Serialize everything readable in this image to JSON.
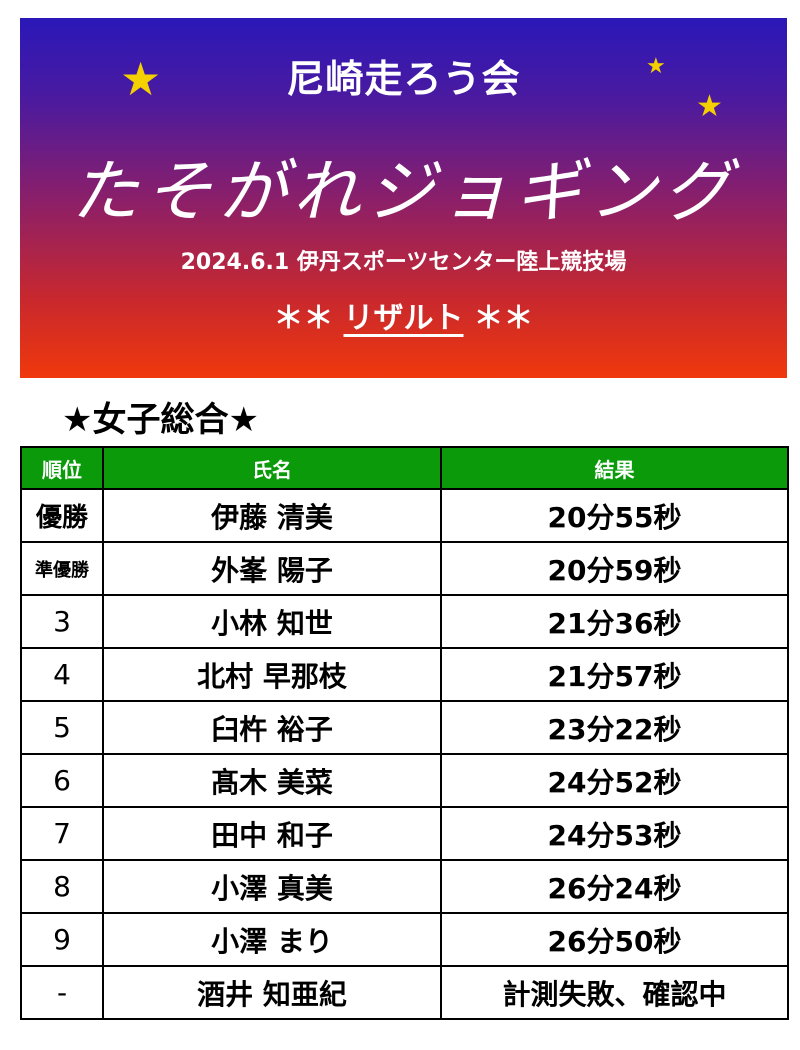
{
  "header": {
    "org": "尼崎走ろう会",
    "event": "たそがれジョギング",
    "subline": "2024.6.1 伊丹スポーツセンター陸上競技場",
    "result_left": "＊＊",
    "result_word": "リザルト",
    "result_right": "＊＊",
    "star_color": "#f5d000"
  },
  "section_title": "★女子総合★",
  "table": {
    "headers": [
      "順位",
      "氏名",
      "結果"
    ],
    "header_color": "#0a9a0a",
    "rows": [
      {
        "rank": "優勝",
        "name": "伊藤 清美",
        "result": "20分55秒"
      },
      {
        "rank": "準優勝",
        "name": "外峯 陽子",
        "result": "20分59秒"
      },
      {
        "rank": "3",
        "name": "小林 知世",
        "result": "21分36秒"
      },
      {
        "rank": "4",
        "name": "北村 早那枝",
        "result": "21分57秒"
      },
      {
        "rank": "5",
        "name": "臼杵 裕子",
        "result": "23分22秒"
      },
      {
        "rank": "6",
        "name": "髙木 美菜",
        "result": "24分52秒"
      },
      {
        "rank": "7",
        "name": "田中 和子",
        "result": "24分53秒"
      },
      {
        "rank": "8",
        "name": "小澤 真美",
        "result": "26分24秒"
      },
      {
        "rank": "9",
        "name": "小澤 まり",
        "result": "26分50秒"
      },
      {
        "rank": "-",
        "name": "酒井 知亜紀",
        "result": "計測失敗、確認中"
      }
    ]
  }
}
